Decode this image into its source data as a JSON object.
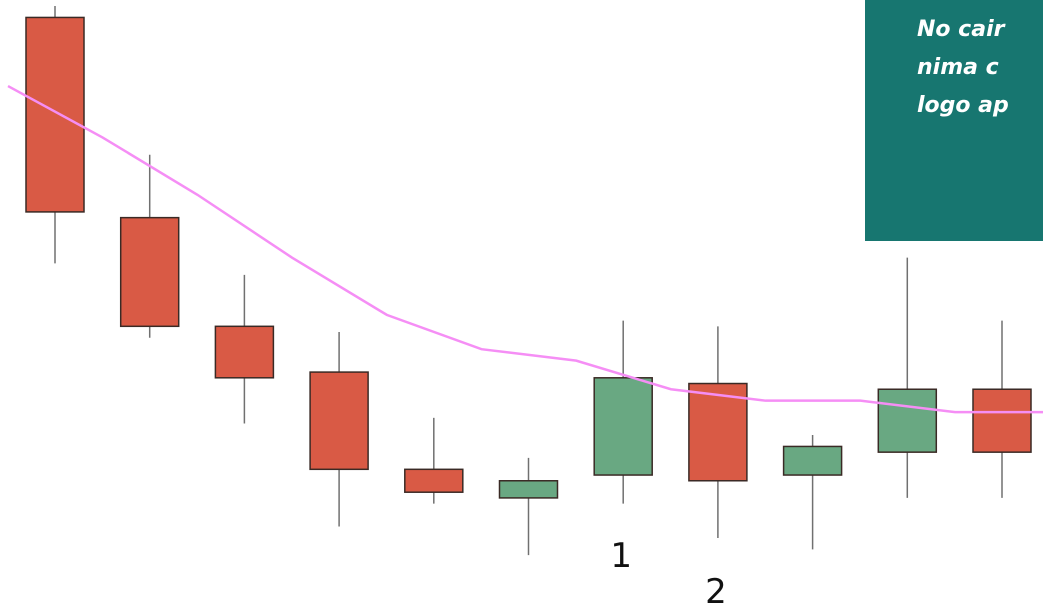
{
  "callout": {
    "lines": [
      "No cair",
      "nima c",
      "logo ap"
    ]
  },
  "colors": {
    "bearish": "#d95a45",
    "bullish": "#69a882",
    "outline": "#3a2a25",
    "wick": "#707070",
    "moving_average": "#f58ef5",
    "callout_bg": "#177670"
  },
  "chart_data": {
    "type": "candlestick",
    "title": "",
    "xlabel": "",
    "ylabel": "",
    "ylim": [
      0,
      100
    ],
    "candles": [
      {
        "open": 98,
        "close": 64,
        "high": 100,
        "low": 55,
        "direction": "bearish"
      },
      {
        "open": 63,
        "close": 44,
        "high": 74,
        "low": 42,
        "direction": "bearish"
      },
      {
        "open": 44,
        "close": 35,
        "high": 53,
        "low": 27,
        "direction": "bearish"
      },
      {
        "open": 36,
        "close": 19,
        "high": 43,
        "low": 9,
        "direction": "bearish"
      },
      {
        "open": 19,
        "close": 15,
        "high": 28,
        "low": 13,
        "direction": "bearish"
      },
      {
        "open": 14,
        "close": 17,
        "high": 21,
        "low": 4,
        "direction": "bullish"
      },
      {
        "open": 18,
        "close": 35,
        "high": 45,
        "low": 13,
        "direction": "bullish"
      },
      {
        "open": 34,
        "close": 17,
        "high": 44,
        "low": 7,
        "direction": "bearish"
      },
      {
        "open": 18,
        "close": 23,
        "high": 25,
        "low": 5,
        "direction": "bullish"
      },
      {
        "open": 22,
        "close": 33,
        "high": 56,
        "low": 14,
        "direction": "bullish"
      },
      {
        "open": 33,
        "close": 22,
        "high": 45,
        "low": 14,
        "direction": "bearish"
      }
    ],
    "moving_average": [
      86,
      77,
      67,
      56,
      46,
      40,
      38,
      33,
      31,
      31,
      29,
      29
    ],
    "annotations": [
      {
        "candle": 6,
        "text": "1"
      },
      {
        "candle": 7,
        "text": "2"
      }
    ]
  }
}
